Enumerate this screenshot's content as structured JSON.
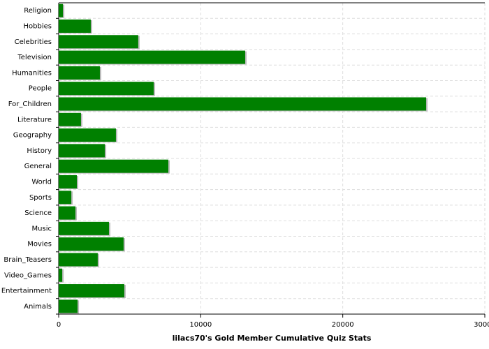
{
  "chart_data": {
    "type": "bar",
    "orientation": "horizontal",
    "title": "lilacs70's Gold Member Cumulative Quiz Stats",
    "categories": [
      "Religion",
      "Hobbies",
      "Celebrities",
      "Television",
      "Humanities",
      "People",
      "For_Children",
      "Literature",
      "Geography",
      "History",
      "General",
      "World",
      "Sports",
      "Science",
      "Music",
      "Movies",
      "Brain_Teasers",
      "Video_Games",
      "Entertainment",
      "Animals"
    ],
    "values": [
      300,
      2260,
      5600,
      13130,
      2900,
      6690,
      25870,
      1570,
      4030,
      3250,
      7720,
      1280,
      890,
      1180,
      3540,
      4570,
      2750,
      250,
      4620,
      1330
    ],
    "color": "#008000",
    "xlim": [
      0,
      30000
    ],
    "xticks": [
      0,
      10000,
      20000,
      30000
    ],
    "grid": true
  }
}
